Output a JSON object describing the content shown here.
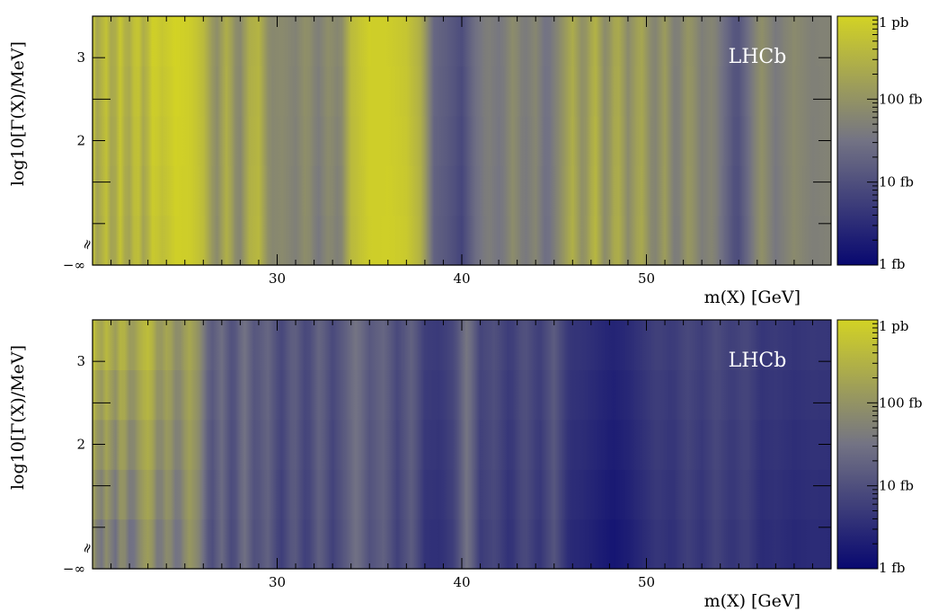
{
  "chart_data": [
    {
      "type": "heatmap",
      "title": "",
      "xlabel": "m(X) [GeV]",
      "ylabel": "log10[Γ(X)/MeV]",
      "xlim": [
        20,
        60
      ],
      "ylim": [
        0.5,
        3.5
      ],
      "x_ticks": [
        {
          "value": 30,
          "label": "30"
        },
        {
          "value": 40,
          "label": "40"
        },
        {
          "value": 50,
          "label": "50"
        }
      ],
      "y_ticks": [
        {
          "value": 0.5,
          "label": "−∞"
        },
        {
          "value": 2,
          "label": "2"
        },
        {
          "value": 3,
          "label": "3"
        }
      ],
      "axis_break_symbol": "≈",
      "annotation": "LHCb",
      "colorbar": {
        "scale": "log",
        "range": [
          "1 fb",
          "1 pb"
        ],
        "ticks": [
          "1 pb",
          "100 fb",
          "10 fb",
          "1 fb"
        ],
        "colors": [
          "#080870",
          "#737384",
          "#d3d324"
        ]
      },
      "stripes": [
        {
          "x": 20.0,
          "v": 0.94
        },
        {
          "x": 20.3,
          "v": 0.7
        },
        {
          "x": 20.7,
          "v": 0.93
        },
        {
          "x": 21.1,
          "v": 0.68
        },
        {
          "x": 21.5,
          "v": 0.92
        },
        {
          "x": 21.9,
          "v": 0.7
        },
        {
          "x": 22.4,
          "v": 0.95
        },
        {
          "x": 22.8,
          "v": 0.72
        },
        {
          "x": 23.3,
          "v": 0.97
        },
        {
          "x": 23.8,
          "v": 0.88
        },
        {
          "x": 24.5,
          "v": 0.98
        },
        {
          "x": 25.3,
          "v": 0.97
        },
        {
          "x": 26.0,
          "v": 0.88
        },
        {
          "x": 26.7,
          "v": 0.6
        },
        {
          "x": 27.3,
          "v": 0.84
        },
        {
          "x": 27.9,
          "v": 0.55
        },
        {
          "x": 28.5,
          "v": 0.82
        },
        {
          "x": 29.0,
          "v": 0.86
        },
        {
          "x": 29.6,
          "v": 0.6
        },
        {
          "x": 30.3,
          "v": 0.62
        },
        {
          "x": 31.0,
          "v": 0.56
        },
        {
          "x": 31.6,
          "v": 0.65
        },
        {
          "x": 32.2,
          "v": 0.52
        },
        {
          "x": 32.8,
          "v": 0.62
        },
        {
          "x": 33.4,
          "v": 0.54
        },
        {
          "x": 34.0,
          "v": 0.86
        },
        {
          "x": 35.0,
          "v": 0.97
        },
        {
          "x": 36.0,
          "v": 0.98
        },
        {
          "x": 37.0,
          "v": 0.95
        },
        {
          "x": 37.8,
          "v": 0.82
        },
        {
          "x": 38.5,
          "v": 0.42
        },
        {
          "x": 39.3,
          "v": 0.36
        },
        {
          "x": 40.0,
          "v": 0.28
        },
        {
          "x": 40.7,
          "v": 0.46
        },
        {
          "x": 41.4,
          "v": 0.56
        },
        {
          "x": 42.1,
          "v": 0.5
        },
        {
          "x": 42.8,
          "v": 0.64
        },
        {
          "x": 43.4,
          "v": 0.52
        },
        {
          "x": 44.0,
          "v": 0.6
        },
        {
          "x": 44.6,
          "v": 0.46
        },
        {
          "x": 45.3,
          "v": 0.62
        },
        {
          "x": 46.0,
          "v": 0.82
        },
        {
          "x": 46.6,
          "v": 0.62
        },
        {
          "x": 47.2,
          "v": 0.88
        },
        {
          "x": 47.8,
          "v": 0.6
        },
        {
          "x": 48.4,
          "v": 0.84
        },
        {
          "x": 49.0,
          "v": 0.62
        },
        {
          "x": 49.7,
          "v": 0.8
        },
        {
          "x": 50.4,
          "v": 0.56
        },
        {
          "x": 51.0,
          "v": 0.72
        },
        {
          "x": 51.6,
          "v": 0.52
        },
        {
          "x": 52.3,
          "v": 0.7
        },
        {
          "x": 53.0,
          "v": 0.55
        },
        {
          "x": 53.6,
          "v": 0.6
        },
        {
          "x": 54.2,
          "v": 0.46
        },
        {
          "x": 54.9,
          "v": 0.3
        },
        {
          "x": 55.5,
          "v": 0.46
        },
        {
          "x": 56.2,
          "v": 0.66
        },
        {
          "x": 57.0,
          "v": 0.52
        },
        {
          "x": 58.0,
          "v": 0.62
        },
        {
          "x": 59.0,
          "v": 0.56
        },
        {
          "x": 60.0,
          "v": 0.58
        }
      ],
      "top_boost": [
        {
          "x": 20.0,
          "v": 0.04
        },
        {
          "x": 22.0,
          "v": 0.06
        },
        {
          "x": 24.0,
          "v": 0.08
        },
        {
          "x": 26.0,
          "v": 0.02
        },
        {
          "x": 30.0,
          "v": 0.0
        },
        {
          "x": 35.0,
          "v": 0.05
        },
        {
          "x": 38.0,
          "v": 0.0
        },
        {
          "x": 60.0,
          "v": 0.0
        }
      ]
    },
    {
      "type": "heatmap",
      "title": "",
      "xlabel": "m(X) [GeV]",
      "ylabel": "log10[Γ(X)/MeV]",
      "xlim": [
        20,
        60
      ],
      "ylim": [
        0.5,
        3.5
      ],
      "x_ticks": [
        {
          "value": 30,
          "label": "30"
        },
        {
          "value": 40,
          "label": "40"
        },
        {
          "value": 50,
          "label": "50"
        }
      ],
      "y_ticks": [
        {
          "value": 0.5,
          "label": "−∞"
        },
        {
          "value": 2,
          "label": "2"
        },
        {
          "value": 3,
          "label": "3"
        }
      ],
      "axis_break_symbol": "≈",
      "annotation": "LHCb",
      "colorbar": {
        "scale": "log",
        "range": [
          "1 fb",
          "1 pb"
        ],
        "ticks": [
          "1 pb",
          "100 fb",
          "10 fb",
          "1 fb"
        ],
        "colors": [
          "#080870",
          "#737384",
          "#d3d324"
        ]
      },
      "stripes": [
        {
          "x": 20.0,
          "v": 0.72
        },
        {
          "x": 20.4,
          "v": 0.46
        },
        {
          "x": 20.8,
          "v": 0.66
        },
        {
          "x": 21.2,
          "v": 0.44
        },
        {
          "x": 21.6,
          "v": 0.68
        },
        {
          "x": 22.1,
          "v": 0.44
        },
        {
          "x": 22.6,
          "v": 0.64
        },
        {
          "x": 23.1,
          "v": 0.74
        },
        {
          "x": 23.6,
          "v": 0.48
        },
        {
          "x": 24.1,
          "v": 0.66
        },
        {
          "x": 24.6,
          "v": 0.46
        },
        {
          "x": 25.2,
          "v": 0.7
        },
        {
          "x": 25.8,
          "v": 0.58
        },
        {
          "x": 26.4,
          "v": 0.3
        },
        {
          "x": 27.0,
          "v": 0.46
        },
        {
          "x": 27.6,
          "v": 0.28
        },
        {
          "x": 28.2,
          "v": 0.5
        },
        {
          "x": 28.8,
          "v": 0.32
        },
        {
          "x": 29.5,
          "v": 0.42
        },
        {
          "x": 30.2,
          "v": 0.24
        },
        {
          "x": 30.9,
          "v": 0.4
        },
        {
          "x": 31.6,
          "v": 0.24
        },
        {
          "x": 32.3,
          "v": 0.42
        },
        {
          "x": 33.0,
          "v": 0.26
        },
        {
          "x": 33.7,
          "v": 0.38
        },
        {
          "x": 34.3,
          "v": 0.5
        },
        {
          "x": 35.0,
          "v": 0.34
        },
        {
          "x": 35.8,
          "v": 0.42
        },
        {
          "x": 36.5,
          "v": 0.26
        },
        {
          "x": 37.3,
          "v": 0.4
        },
        {
          "x": 38.0,
          "v": 0.2
        },
        {
          "x": 38.8,
          "v": 0.18
        },
        {
          "x": 39.6,
          "v": 0.26
        },
        {
          "x": 40.3,
          "v": 0.52
        },
        {
          "x": 41.0,
          "v": 0.24
        },
        {
          "x": 41.8,
          "v": 0.3
        },
        {
          "x": 42.6,
          "v": 0.18
        },
        {
          "x": 43.4,
          "v": 0.32
        },
        {
          "x": 44.2,
          "v": 0.2
        },
        {
          "x": 45.0,
          "v": 0.36
        },
        {
          "x": 45.8,
          "v": 0.16
        },
        {
          "x": 46.6,
          "v": 0.14
        },
        {
          "x": 47.4,
          "v": 0.1
        },
        {
          "x": 48.2,
          "v": 0.06
        },
        {
          "x": 49.0,
          "v": 0.1
        },
        {
          "x": 49.8,
          "v": 0.16
        },
        {
          "x": 50.6,
          "v": 0.22
        },
        {
          "x": 51.4,
          "v": 0.18
        },
        {
          "x": 52.2,
          "v": 0.26
        },
        {
          "x": 53.0,
          "v": 0.2
        },
        {
          "x": 53.8,
          "v": 0.28
        },
        {
          "x": 54.6,
          "v": 0.2
        },
        {
          "x": 55.4,
          "v": 0.26
        },
        {
          "x": 56.2,
          "v": 0.16
        },
        {
          "x": 57.0,
          "v": 0.18
        },
        {
          "x": 58.0,
          "v": 0.15
        },
        {
          "x": 59.0,
          "v": 0.17
        },
        {
          "x": 60.0,
          "v": 0.16
        }
      ],
      "top_boost": [
        {
          "x": 20.0,
          "v": 0.24
        },
        {
          "x": 21.5,
          "v": 0.22
        },
        {
          "x": 23.0,
          "v": 0.18
        },
        {
          "x": 25.0,
          "v": 0.1
        },
        {
          "x": 27.0,
          "v": 0.0
        },
        {
          "x": 60.0,
          "v": 0.0
        }
      ]
    }
  ]
}
